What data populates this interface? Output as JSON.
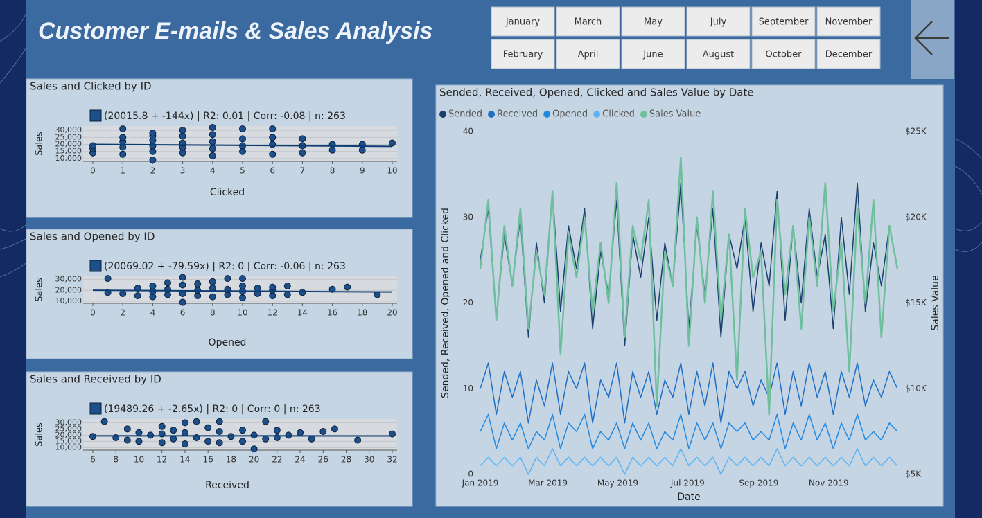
{
  "header": {
    "title": "Customer E-mails & Sales Analysis"
  },
  "months": [
    "January",
    "February",
    "March",
    "April",
    "May",
    "June",
    "July",
    "August",
    "September",
    "October",
    "November",
    "December"
  ],
  "chart_data": [
    {
      "type": "scatter",
      "title": "Sales and Clicked by ID",
      "legend": "(20015.8 + -144x) | R2: 0.01 | Corr: -0.08 | n: 263",
      "trend": {
        "intercept": 20015.8,
        "slope": -144
      },
      "x_label": "Clicked",
      "y_label": "Sales",
      "color": "#1d4f8a",
      "x": [
        0,
        0,
        0,
        1,
        1,
        1,
        1,
        1,
        2,
        2,
        2,
        2,
        2,
        2,
        3,
        3,
        3,
        3,
        3,
        4,
        4,
        4,
        4,
        4,
        5,
        5,
        5,
        5,
        6,
        6,
        6,
        6,
        7,
        7,
        7,
        8,
        8,
        9,
        9,
        10
      ],
      "values": [
        14000,
        17000,
        19000,
        13000,
        18000,
        22000,
        25000,
        31000,
        9000,
        15000,
        19000,
        23000,
        26000,
        28000,
        14000,
        18000,
        21000,
        26000,
        30000,
        12000,
        17000,
        22000,
        27000,
        32000,
        15000,
        19000,
        24000,
        31000,
        13000,
        20000,
        25000,
        31000,
        14000,
        19000,
        24000,
        16000,
        20000,
        16000,
        20000,
        21000
      ],
      "xlim": [
        0,
        10
      ],
      "xticks": [
        0,
        1,
        2,
        3,
        4,
        5,
        6,
        7,
        8,
        9,
        10
      ],
      "ylim": [
        8000,
        33000
      ],
      "yticks": [
        {
          "value": 10000,
          "label": "10,000"
        },
        {
          "value": 15000,
          "label": "15,000"
        },
        {
          "value": 20000,
          "label": "20,000"
        },
        {
          "value": 25000,
          "label": "25,000"
        },
        {
          "value": 30000,
          "label": "30,000"
        }
      ]
    },
    {
      "type": "scatter",
      "title": "Sales and Opened by ID",
      "legend": "(20069.02 + -79.59x) | R2: 0 | Corr: -0.06 | n: 263",
      "trend": {
        "intercept": 20069.02,
        "slope": -79.59
      },
      "x_label": "Opened",
      "y_label": "Sales",
      "color": "#1d4f8a",
      "x": [
        1,
        1,
        2,
        3,
        3,
        4,
        4,
        4,
        5,
        5,
        5,
        6,
        6,
        6,
        6,
        7,
        7,
        7,
        8,
        8,
        8,
        9,
        9,
        9,
        10,
        10,
        10,
        10,
        11,
        11,
        12,
        12,
        12,
        13,
        13,
        14,
        16,
        17,
        19
      ],
      "values": [
        31000,
        18000,
        17000,
        15000,
        22000,
        14000,
        19000,
        24000,
        16000,
        21000,
        27000,
        9000,
        17000,
        25000,
        32000,
        15000,
        20000,
        26000,
        14000,
        22000,
        28000,
        16000,
        21000,
        31000,
        13000,
        19000,
        24000,
        31000,
        17000,
        22000,
        15000,
        20000,
        23000,
        16000,
        24000,
        18000,
        21000,
        23000,
        16000
      ],
      "xlim": [
        0,
        20
      ],
      "xticks": [
        0,
        2,
        4,
        6,
        8,
        10,
        12,
        14,
        16,
        18,
        20
      ],
      "ylim": [
        8000,
        33000
      ],
      "yticks": [
        {
          "value": 10000,
          "label": "10,000"
        },
        {
          "value": 20000,
          "label": "20,000"
        },
        {
          "value": 30000,
          "label": "30,000"
        }
      ]
    },
    {
      "type": "scatter",
      "title": "Sales and Received by ID",
      "legend": "(19489.26 + -2.65x) | R2: 0 | Corr: 0 | n: 263",
      "trend": {
        "intercept": 19489.26,
        "slope": -2.65
      },
      "x_label": "Received",
      "y_label": "Sales",
      "color": "#1d4f8a",
      "x": [
        6,
        7,
        8,
        9,
        9,
        10,
        10,
        11,
        12,
        12,
        12,
        13,
        13,
        14,
        14,
        14,
        15,
        15,
        16,
        16,
        17,
        17,
        17,
        18,
        19,
        19,
        20,
        20,
        21,
        21,
        22,
        22,
        23,
        24,
        25,
        26,
        27,
        29,
        32
      ],
      "values": [
        19000,
        31000,
        18000,
        16000,
        25000,
        15000,
        22000,
        20000,
        14000,
        21000,
        27000,
        17000,
        24000,
        13000,
        22000,
        30000,
        18000,
        31000,
        15000,
        26000,
        14000,
        23000,
        31000,
        19000,
        15000,
        24000,
        9000,
        20000,
        17000,
        31000,
        18000,
        24000,
        20000,
        22000,
        17000,
        23000,
        25000,
        16000,
        21000
      ],
      "xlim": [
        6,
        32
      ],
      "xticks": [
        6,
        8,
        10,
        12,
        14,
        16,
        18,
        20,
        22,
        24,
        26,
        28,
        30,
        32
      ],
      "ylim": [
        8000,
        33000
      ],
      "yticks": [
        {
          "value": 10000,
          "label": "10,000"
        },
        {
          "value": 15000,
          "label": "15,000"
        },
        {
          "value": 20000,
          "label": "20,000"
        },
        {
          "value": 25000,
          "label": "25,000"
        },
        {
          "value": 30000,
          "label": "30,000"
        }
      ]
    },
    {
      "type": "line",
      "title": "Sended, Received, Opened, Clicked and Sales Value by Date",
      "x_label": "Date",
      "y_label": "Sended, Received, Opened and Clicked",
      "y2_label": "Sales Value",
      "x": [
        1,
        8,
        15,
        22,
        29,
        36,
        43,
        50,
        57,
        64,
        71,
        78,
        85,
        92,
        99,
        106,
        113,
        120,
        127,
        134,
        141,
        148,
        155,
        162,
        169,
        176,
        183,
        190,
        197,
        204,
        211,
        218,
        225,
        232,
        239,
        246,
        253,
        260,
        267,
        274,
        281,
        288,
        295,
        302,
        309,
        316,
        323,
        330,
        337,
        344,
        351,
        358,
        365
      ],
      "xlim": [
        1,
        365
      ],
      "xticks": [
        {
          "value": 1,
          "label": "Jan 2019"
        },
        {
          "value": 60,
          "label": "Mar 2019"
        },
        {
          "value": 121,
          "label": "May 2019"
        },
        {
          "value": 182,
          "label": "Jul 2019"
        },
        {
          "value": 244,
          "label": "Sep 2019"
        },
        {
          "value": 305,
          "label": "Nov 2019"
        }
      ],
      "ylim": [
        0,
        40
      ],
      "yticks": [
        0,
        10,
        20,
        30,
        40
      ],
      "y2lim": [
        5000,
        25000
      ],
      "y2ticks": [
        {
          "value": 5000,
          "label": "$5K"
        },
        {
          "value": 10000,
          "label": "$10K"
        },
        {
          "value": 15000,
          "label": "$15K"
        },
        {
          "value": 20000,
          "label": "$20K"
        },
        {
          "value": 25000,
          "label": "$25K"
        }
      ],
      "series": [
        {
          "name": "Sended",
          "color": "#1a3e6e",
          "values": [
            25,
            31,
            18,
            28,
            22,
            30,
            16,
            27,
            20,
            33,
            19,
            29,
            24,
            31,
            17,
            26,
            21,
            32,
            15,
            28,
            23,
            30,
            18,
            27,
            22,
            34,
            17,
            29,
            21,
            31,
            16,
            28,
            24,
            30,
            19,
            27,
            22,
            33,
            18,
            29,
            20,
            31,
            23,
            28,
            17,
            30,
            21,
            34,
            19,
            27,
            22,
            29,
            24
          ]
        },
        {
          "name": "Received",
          "color": "#1f6fc5",
          "values": [
            10,
            13,
            7,
            12,
            9,
            12,
            6,
            11,
            8,
            13,
            7,
            12,
            10,
            13,
            6,
            11,
            9,
            13,
            6,
            12,
            9,
            12,
            7,
            11,
            9,
            13,
            7,
            12,
            8,
            13,
            6,
            12,
            10,
            12,
            8,
            11,
            9,
            13,
            7,
            12,
            8,
            13,
            9,
            12,
            7,
            12,
            9,
            13,
            8,
            11,
            9,
            12,
            10
          ]
        },
        {
          "name": "Opened",
          "color": "#2389e0",
          "values": [
            5,
            7,
            3,
            6,
            4,
            6,
            3,
            5,
            4,
            7,
            3,
            6,
            5,
            7,
            3,
            5,
            4,
            6,
            3,
            6,
            4,
            6,
            3,
            5,
            4,
            7,
            3,
            6,
            4,
            6,
            3,
            6,
            5,
            6,
            4,
            5,
            4,
            7,
            3,
            6,
            4,
            7,
            4,
            6,
            3,
            6,
            4,
            7,
            4,
            5,
            4,
            6,
            5
          ]
        },
        {
          "name": "Clicked",
          "color": "#5fb3f0",
          "values": [
            1,
            2,
            1,
            2,
            1,
            2,
            0,
            2,
            1,
            3,
            1,
            2,
            1,
            2,
            1,
            2,
            1,
            2,
            0,
            2,
            1,
            2,
            1,
            2,
            1,
            3,
            1,
            2,
            1,
            2,
            0,
            2,
            1,
            2,
            1,
            2,
            1,
            3,
            1,
            2,
            1,
            2,
            1,
            2,
            1,
            2,
            1,
            3,
            1,
            2,
            1,
            2,
            1
          ]
        },
        {
          "name": "Sales Value",
          "color": "#6fbf9c",
          "axis": "y2",
          "values": [
            17000,
            21000,
            14000,
            19500,
            16000,
            20500,
            13500,
            18000,
            15500,
            21500,
            12000,
            19000,
            16500,
            20000,
            14500,
            18500,
            15000,
            22000,
            13000,
            19500,
            17500,
            21000,
            9000,
            18000,
            16000,
            23500,
            12500,
            20000,
            15000,
            21500,
            14000,
            19000,
            10500,
            20500,
            16500,
            18000,
            8500,
            21000,
            15500,
            19500,
            13500,
            20000,
            16000,
            22000,
            14500,
            18500,
            11000,
            20500,
            15000,
            21000,
            13000,
            19500,
            17000
          ]
        }
      ]
    }
  ]
}
